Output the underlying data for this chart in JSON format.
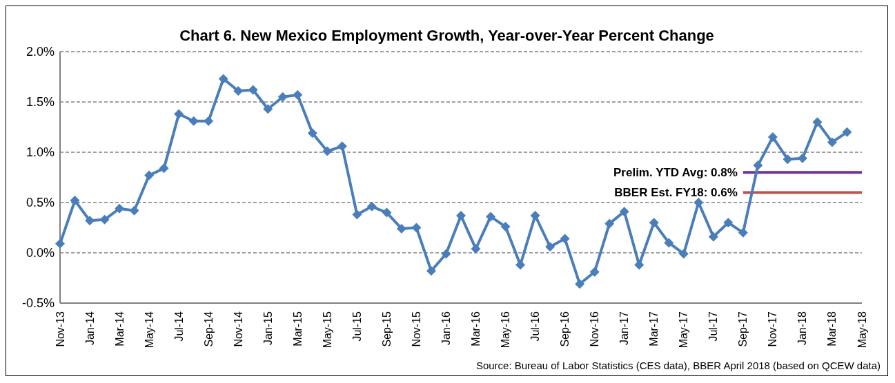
{
  "chart_data": {
    "type": "line",
    "title": "Chart 6. New Mexico Employment Growth, Year-over-Year Percent Change",
    "categories": [
      "Nov-13",
      null,
      "Jan-14",
      null,
      "Mar-14",
      null,
      "May-14",
      null,
      "Jul-14",
      null,
      "Sep-14",
      null,
      "Nov-14",
      null,
      "Jan-15",
      null,
      "Mar-15",
      null,
      "May-15",
      null,
      "Jul-15",
      null,
      "Sep-15",
      null,
      "Nov-15",
      null,
      "Jan-16",
      null,
      "Mar-16",
      null,
      "May-16",
      null,
      "Jul-16",
      null,
      "Sep-16",
      null,
      "Nov-16",
      null,
      "Jan-17",
      null,
      "Mar-17",
      null,
      "May-17",
      null,
      "Jul-17",
      null,
      "Sep-17",
      null,
      "Nov-17",
      null,
      "Jan-18",
      null,
      "Mar-18",
      null,
      "May-18"
    ],
    "series": [
      {
        "color": "#4a7ebb",
        "values": [
          0.09,
          0.52,
          0.32,
          0.33,
          0.44,
          0.42,
          0.77,
          0.84,
          1.38,
          1.31,
          1.31,
          1.73,
          1.61,
          1.62,
          1.43,
          1.55,
          1.57,
          1.19,
          1.01,
          1.06,
          0.38,
          0.46,
          0.4,
          0.24,
          0.25,
          -0.18,
          -0.01,
          0.37,
          0.04,
          0.36,
          0.26,
          -0.12,
          0.37,
          0.06,
          0.14,
          -0.31,
          -0.19,
          0.29,
          0.41,
          -0.12,
          0.3,
          0.1,
          -0.01,
          0.5,
          0.16,
          0.3,
          0.2,
          0.87,
          1.15,
          0.93,
          0.94,
          1.3,
          1.1,
          1.2,
          null
        ]
      }
    ],
    "ylim": [
      -0.5,
      2.0
    ],
    "yticks": [
      {
        "value": -0.5,
        "label": "-0.5%"
      },
      {
        "value": 0,
        "label": "0.0%"
      },
      {
        "value": 0.5,
        "label": "0.5%"
      },
      {
        "value": 1.0,
        "label": "1.0%"
      },
      {
        "value": 1.5,
        "label": "1.5%"
      },
      {
        "value": 2.0,
        "label": "2.0%"
      }
    ],
    "grid": "y",
    "marker": "diamond",
    "line_style": "solid",
    "ref_lines": [
      {
        "axis": "y",
        "value": 0.8,
        "label": "Prelim. YTD Avg: 0.8%",
        "color": "#7030a0"
      },
      {
        "axis": "y",
        "value": 0.6,
        "label": "BBER Est. FY18: 0.6%",
        "color": "#c0504d"
      }
    ],
    "annotations": [
      "Source: Bureau of Labor Statistics (CES data), BBER April 2018 (based on QCEW data)"
    ]
  }
}
